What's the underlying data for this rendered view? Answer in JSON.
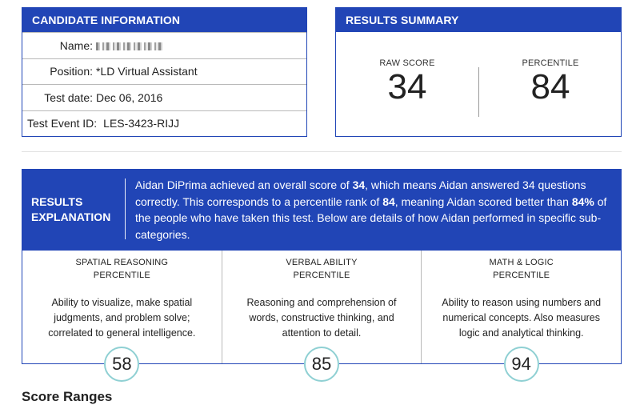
{
  "candidate": {
    "header": "CANDIDATE INFORMATION",
    "rows": [
      {
        "label": "Name:",
        "value": ""
      },
      {
        "label": "Position:",
        "value": "*LD Virtual Assistant"
      },
      {
        "label": "Test date:",
        "value": "Dec 06, 2016"
      },
      {
        "label": "Test Event ID:",
        "value": "LES-3423-RIJJ"
      }
    ]
  },
  "summary": {
    "header": "RESULTS SUMMARY",
    "raw_label": "RAW SCORE",
    "raw_value": "34",
    "pct_label": "PERCENTILE",
    "pct_value": "84"
  },
  "explanation": {
    "title_line1": "RESULTS",
    "title_line2": "EXPLANATION",
    "t1": "Aidan DiPrima achieved an overall score of ",
    "b1": "34",
    "t2": ", which means Aidan answered 34 questions correctly. This corresponds to a percentile rank of ",
    "b2": "84",
    "t3": ", meaning Aidan scored better than ",
    "b3": "84%",
    "t4": " of the people who have taken this test. Below are details of how Aidan performed in specific sub-categories."
  },
  "categories": [
    {
      "title1": "SPATIAL REASONING",
      "title2": "PERCENTILE",
      "desc": "Ability to visualize, make spatial judgments, and problem solve; correlated to general intelligence.",
      "score": "58"
    },
    {
      "title1": "VERBAL ABILITY",
      "title2": "PERCENTILE",
      "desc": "Reasoning and comprehension of words, constructive thinking, and attention to detail.",
      "score": "85"
    },
    {
      "title1": "MATH & LOGIC",
      "title2": "PERCENTILE",
      "desc": "Ability to reason using numbers and numerical concepts. Also measures logic and analytical thinking.",
      "score": "94"
    }
  ],
  "score_ranges_heading": "Score Ranges",
  "colors": {
    "brand_blue": "#2145b6",
    "circle_teal": "#8fd0d3"
  }
}
